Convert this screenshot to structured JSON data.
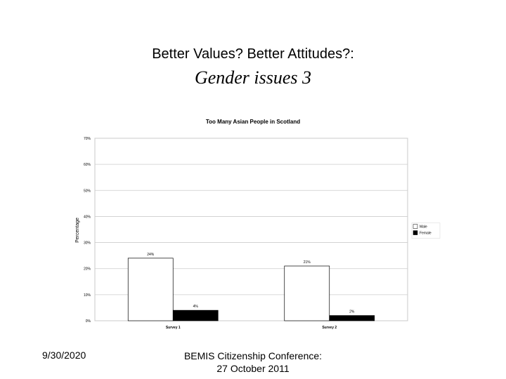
{
  "slide": {
    "title_line1": "Better Values? Better Attitudes?:",
    "title_line2": "Gender issues 3",
    "footer_date": "9/30/2020",
    "footer_conf_line1": "BEMIS Citizenship Conference:",
    "footer_conf_line2": "27 October 2011"
  },
  "chart_data": {
    "type": "bar",
    "title": "Too Many Asian People in Scotland",
    "xlabel": "",
    "ylabel": "Percentage",
    "ylim": [
      0,
      70
    ],
    "yticks": [
      0,
      10,
      20,
      30,
      40,
      50,
      60,
      70
    ],
    "ytick_labels": [
      "0%",
      "10%",
      "20%",
      "30%",
      "40%",
      "50%",
      "60%",
      "70%"
    ],
    "categories": [
      "Survey 1",
      "Survey 2"
    ],
    "series": [
      {
        "name": "Male",
        "values": [
          24,
          21
        ],
        "labels": [
          "24%",
          "21%"
        ],
        "color": "#ffffff"
      },
      {
        "name": "Female",
        "values": [
          4,
          2
        ],
        "labels": [
          "4%",
          "2%"
        ],
        "color": "#000000"
      }
    ],
    "legend": "right",
    "grid": true
  }
}
